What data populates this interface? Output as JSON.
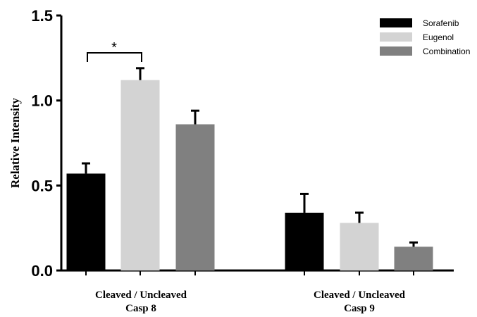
{
  "chart_data": {
    "type": "bar",
    "ylabel": "Relative Intensity",
    "ylim": [
      0,
      1.5
    ],
    "yticks": [
      "0.0",
      "0.5",
      "1.0",
      "1.5"
    ],
    "ytick_values": [
      0,
      0.5,
      1.0,
      1.5
    ],
    "categories": [
      {
        "line1": "Cleaved / Uncleaved",
        "line2": "Casp 8"
      },
      {
        "line1": "Cleaved / Uncleaved",
        "line2": "Casp 9"
      }
    ],
    "series": [
      {
        "name": "Sorafenib",
        "color": "#000000",
        "values": [
          0.57,
          0.34
        ],
        "errors": [
          0.06,
          0.11
        ]
      },
      {
        "name": "Eugenol",
        "color": "#d3d3d3",
        "values": [
          1.12,
          0.28
        ],
        "errors": [
          0.07,
          0.06
        ]
      },
      {
        "name": "Combination",
        "color": "#808080",
        "values": [
          0.86,
          0.14
        ],
        "errors": [
          0.08,
          0.025
        ]
      }
    ],
    "legend_position": "top-right",
    "annotation": {
      "text": "*",
      "category_index": 0,
      "from_series": 0,
      "to_series": 1
    }
  }
}
